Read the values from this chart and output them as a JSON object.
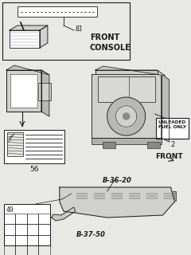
{
  "bg_color": "#e8e8e4",
  "fg_color": "#1a1a1a",
  "white": "#ffffff",
  "light_gray": "#d0d0cc",
  "items": [
    {
      "id": "81",
      "label": "FRONT\nCONSOLE"
    },
    {
      "id": "56",
      "label": "56"
    },
    {
      "id": "2",
      "label": "2"
    },
    {
      "id": "49",
      "label": "49"
    }
  ],
  "refs": [
    "B-36-20",
    "B-37-50"
  ],
  "front_label": "FRONT"
}
